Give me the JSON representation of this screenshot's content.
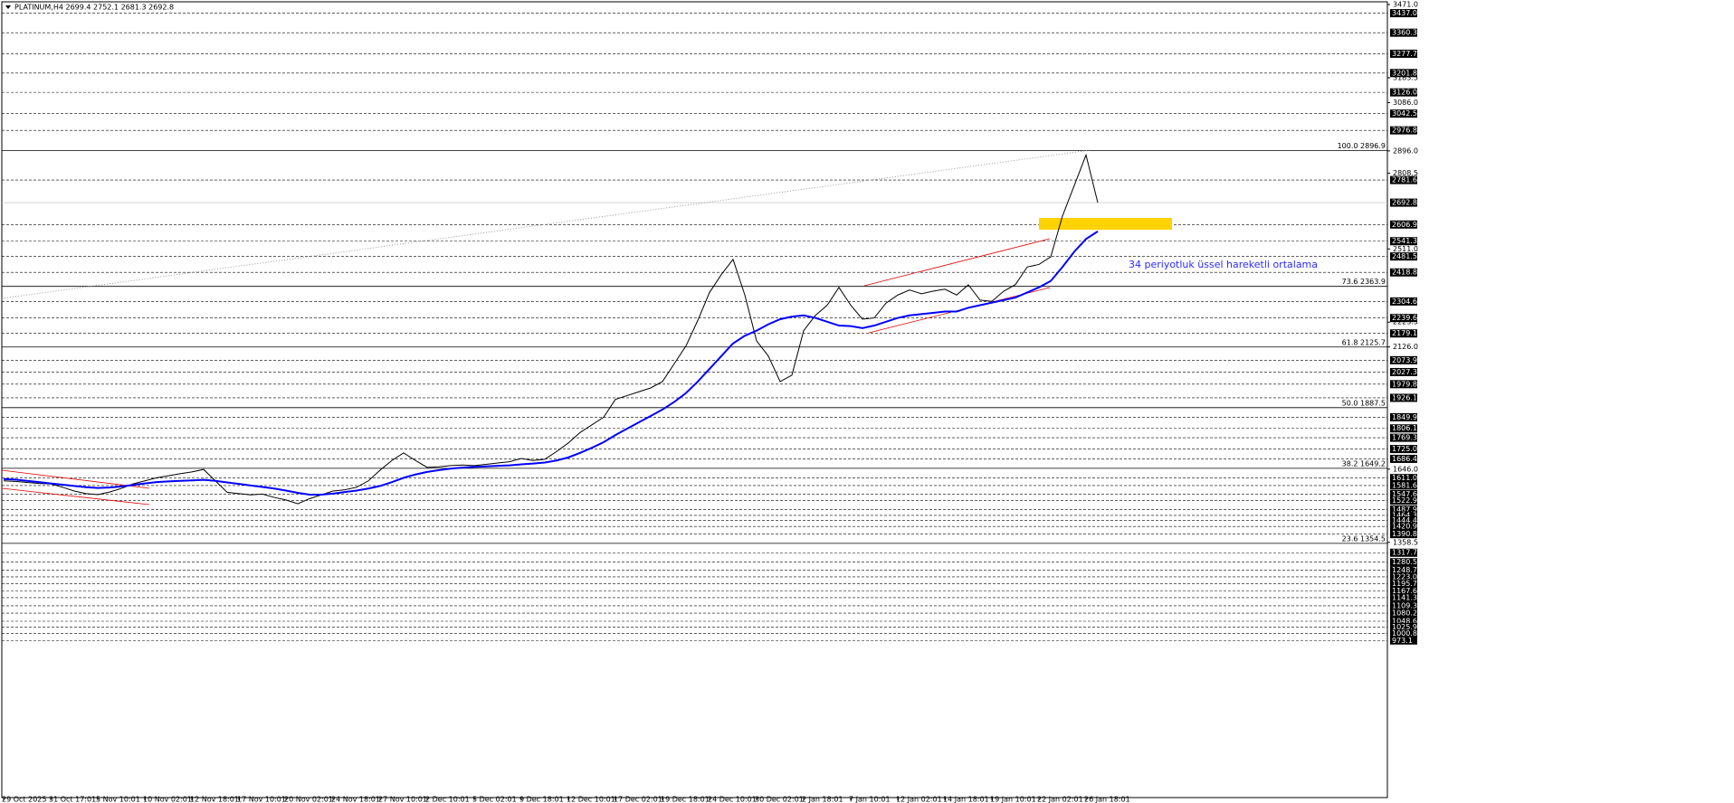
{
  "chart_data": {
    "type": "line",
    "title": "PLATINUM,H4  2699.4 2752.1 2681.3 2692.8",
    "annotation": "34 periyotluk üssel hareketli ortalama",
    "categories": [
      "29 Oct 2025",
      null,
      null,
      null,
      "31 Oct 17:01",
      null,
      null,
      null,
      "5 Nov 10:01",
      null,
      null,
      null,
      "10 Nov 02:01",
      null,
      null,
      null,
      "12 Nov 18:01",
      null,
      null,
      null,
      "17 Nov 10:01",
      null,
      null,
      null,
      "20 Nov 02:01",
      null,
      null,
      null,
      "24 Nov 18:01",
      null,
      null,
      null,
      "27 Nov 10:01",
      null,
      null,
      null,
      "2 Dec 10:01",
      null,
      null,
      null,
      "5 Dec 02:01",
      null,
      null,
      null,
      "9 Dec 18:01",
      null,
      null,
      null,
      "12 Dec 10:01",
      null,
      null,
      null,
      "17 Dec 02:01",
      null,
      null,
      null,
      "19 Dec 18:01",
      null,
      null,
      null,
      "24 Dec 10:01",
      null,
      null,
      null,
      "30 Dec 02:01",
      null,
      null,
      null,
      "2 Jan 18:01",
      null,
      null,
      null,
      "7 Jan 10:01",
      null,
      null,
      null,
      "12 Jan 02:01",
      null,
      null,
      null,
      "14 Jan 18:01",
      null,
      null,
      null,
      "19 Jan 10:01",
      null,
      null,
      null,
      "22 Jan 02:01",
      null,
      null,
      null,
      "26 Jan 18:01",
      null
    ],
    "series": [
      {
        "color": "#000000",
        "values": [
          1600,
          1598,
          1594,
          1590,
          1588,
          1575,
          1560,
          1550,
          1546,
          1556,
          1570,
          1588,
          1600,
          1612,
          1620,
          1628,
          1635,
          1645,
          1600,
          1555,
          1550,
          1545,
          1548,
          1535,
          1525,
          1510,
          1530,
          1545,
          1560,
          1565,
          1575,
          1600,
          1642,
          1680,
          1710,
          1680,
          1653,
          1655,
          1660,
          1662,
          1660,
          1665,
          1670,
          1675,
          1688,
          1680,
          1685,
          1715,
          1749,
          1790,
          1820,
          1850,
          1920,
          1935,
          1950,
          1965,
          1990,
          2060,
          2130,
          2230,
          2340,
          2410,
          2470,
          2330,
          2150,
          2090,
          1990,
          2015,
          2190,
          2250,
          2290,
          2360,
          2290,
          2235,
          2240,
          2298,
          2330,
          2350,
          2335,
          2345,
          2353,
          2330,
          2370,
          2310,
          2305,
          2345,
          2371,
          2440,
          2450,
          2480,
          2640,
          2760,
          2880,
          2692.8
        ]
      },
      {
        "color": "#0000ff",
        "values": [
          1607,
          1605,
          1600,
          1595,
          1590,
          1585,
          1580,
          1575,
          1572,
          1574,
          1578,
          1584,
          1590,
          1595,
          1598,
          1600,
          1602,
          1604,
          1600,
          1594,
          1588,
          1582,
          1576,
          1570,
          1562,
          1553,
          1546,
          1546,
          1550,
          1556,
          1562,
          1570,
          1580,
          1595,
          1612,
          1625,
          1635,
          1642,
          1648,
          1652,
          1655,
          1657,
          1659,
          1661,
          1665,
          1668,
          1672,
          1680,
          1692,
          1710,
          1730,
          1752,
          1780,
          1805,
          1830,
          1855,
          1880,
          1910,
          1945,
          1990,
          2040,
          2090,
          2140,
          2170,
          2190,
          2215,
          2235,
          2245,
          2250,
          2240,
          2225,
          2210,
          2208,
          2200,
          2210,
          2225,
          2240,
          2250,
          2255,
          2260,
          2265,
          2265,
          2280,
          2290,
          2300,
          2310,
          2320,
          2340,
          2360,
          2385,
          2440,
          2500,
          2550,
          2580
        ]
      }
    ],
    "ylim": [
      356,
      3471
    ],
    "yticks": [
      {
        "value": 3471,
        "label": "3471.0"
      },
      {
        "value": 3183.5,
        "label": "3183.5"
      },
      {
        "value": 3086,
        "label": "3086.0"
      },
      {
        "value": 2896,
        "label": "2896.0"
      },
      {
        "value": 2808.5,
        "label": "2808.5"
      },
      {
        "value": 2511,
        "label": "2511.0"
      },
      {
        "value": 2223.5,
        "label": "2223.5"
      },
      {
        "value": 2126,
        "label": "2126.0"
      },
      {
        "value": 1646,
        "label": "1646.0"
      },
      {
        "value": 1358.5,
        "label": "1358.5"
      }
    ],
    "levels": [
      {
        "value": 3437,
        "label": "3437.0"
      },
      {
        "value": 3360.3,
        "label": "3360.3"
      },
      {
        "value": 3277.7,
        "label": "3277.7"
      },
      {
        "value": 3201.8,
        "label": "3201.8"
      },
      {
        "value": 3126,
        "label": "3126.0"
      },
      {
        "value": 3042.5,
        "label": "3042.5"
      },
      {
        "value": 2976.8,
        "label": "2976.8"
      },
      {
        "value": 2781.6,
        "label": "2781.6"
      },
      {
        "value": 2692.8,
        "label": "2692.8"
      },
      {
        "value": 2606.9,
        "label": "2606.9"
      },
      {
        "value": 2541.3,
        "label": "2541.3"
      },
      {
        "value": 2481.5,
        "label": "2481.5"
      },
      {
        "value": 2418.8,
        "label": "2418.8"
      },
      {
        "value": 2304.6,
        "label": "2304.6"
      },
      {
        "value": 2239.6,
        "label": "2239.6"
      },
      {
        "value": 2179.1,
        "label": "2179.1"
      },
      {
        "value": 2073.9,
        "label": "2073.9"
      },
      {
        "value": 2027.3,
        "label": "2027.3"
      },
      {
        "value": 1979.8,
        "label": "1979.8"
      },
      {
        "value": 1926.1,
        "label": "1926.1"
      },
      {
        "value": 1849.9,
        "label": "1849.9"
      },
      {
        "value": 1806.1,
        "label": "1806.1"
      },
      {
        "value": 1769.3,
        "label": "1769.3"
      },
      {
        "value": 1725,
        "label": "1725.0"
      },
      {
        "value": 1686.4,
        "label": "1686.4"
      },
      {
        "value": 1611,
        "label": "1611.0"
      },
      {
        "value": 1581.6,
        "label": "1581.6"
      },
      {
        "value": 1547.6,
        "label": "1547.6"
      },
      {
        "value": 1522.9,
        "label": "1522.9"
      },
      {
        "value": 1487.9,
        "label": "1487.9"
      },
      {
        "value": 1464.3,
        "label": "1464.3"
      },
      {
        "value": 1444.4,
        "label": "1444.4"
      },
      {
        "value": 1420.9,
        "label": "1420.9"
      },
      {
        "value": 1390.8,
        "label": "1390.8"
      },
      {
        "value": 1317.7,
        "label": "1317.7"
      },
      {
        "value": 1280.5,
        "label": "1280.5"
      },
      {
        "value": 1248.7,
        "label": "1248.7"
      },
      {
        "value": 1223,
        "label": "1223.0"
      },
      {
        "value": 1195.7,
        "label": "1195.7"
      },
      {
        "value": 1167.6,
        "label": "1167.6"
      },
      {
        "value": 1141.3,
        "label": "1141.3"
      },
      {
        "value": 1109.3,
        "label": "1109.3"
      },
      {
        "value": 1080.2,
        "label": "1080.2"
      },
      {
        "value": 1048.6,
        "label": "1048.6"
      },
      {
        "value": 1025.9,
        "label": "1025.9"
      },
      {
        "value": 1000.8,
        "label": "1000.8"
      },
      {
        "value": 973.1,
        "label": "973.1"
      }
    ],
    "fib_levels": [
      {
        "value": 2896.9,
        "label": "100.0 2896.9"
      },
      {
        "value": 2363.9,
        "label": "73.6 2363.9"
      },
      {
        "value": 2125.7,
        "label": "61.8 2125.7"
      },
      {
        "value": 1887.5,
        "label": "50.0 1887.5"
      },
      {
        "value": 1649.2,
        "label": "38.2 1649.2"
      },
      {
        "value": 1354.5,
        "label": "23.6 1354.5"
      }
    ]
  }
}
